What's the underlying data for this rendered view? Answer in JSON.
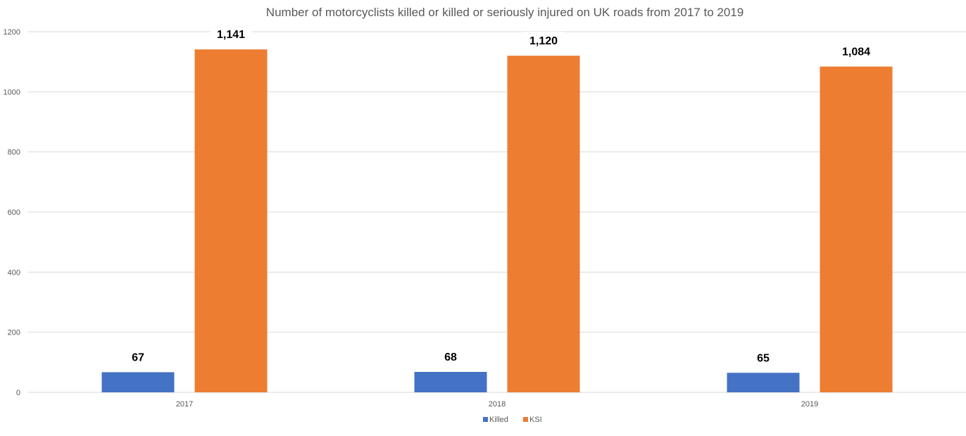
{
  "chart_data": {
    "type": "bar",
    "title": "Number of motorcyclists killed or killed or seriously injured on UK roads from 2017 to 2019",
    "categories": [
      "2017",
      "2018",
      "2019"
    ],
    "series": [
      {
        "name": "Killed",
        "color": "#4472c4",
        "values": [
          67,
          68,
          65
        ],
        "labels": [
          "67",
          "68",
          "65"
        ]
      },
      {
        "name": "KSI",
        "color": "#ed7d31",
        "values": [
          1141,
          1120,
          1084
        ],
        "labels": [
          "1,141",
          "1,120",
          "1,084"
        ]
      }
    ],
    "yticks": [
      "0",
      "200",
      "400",
      "600",
      "800",
      "1000",
      "1200"
    ],
    "ylim": [
      0,
      1200
    ],
    "xlabel": "",
    "ylabel": "",
    "grid": true,
    "legend_position": "bottom"
  }
}
